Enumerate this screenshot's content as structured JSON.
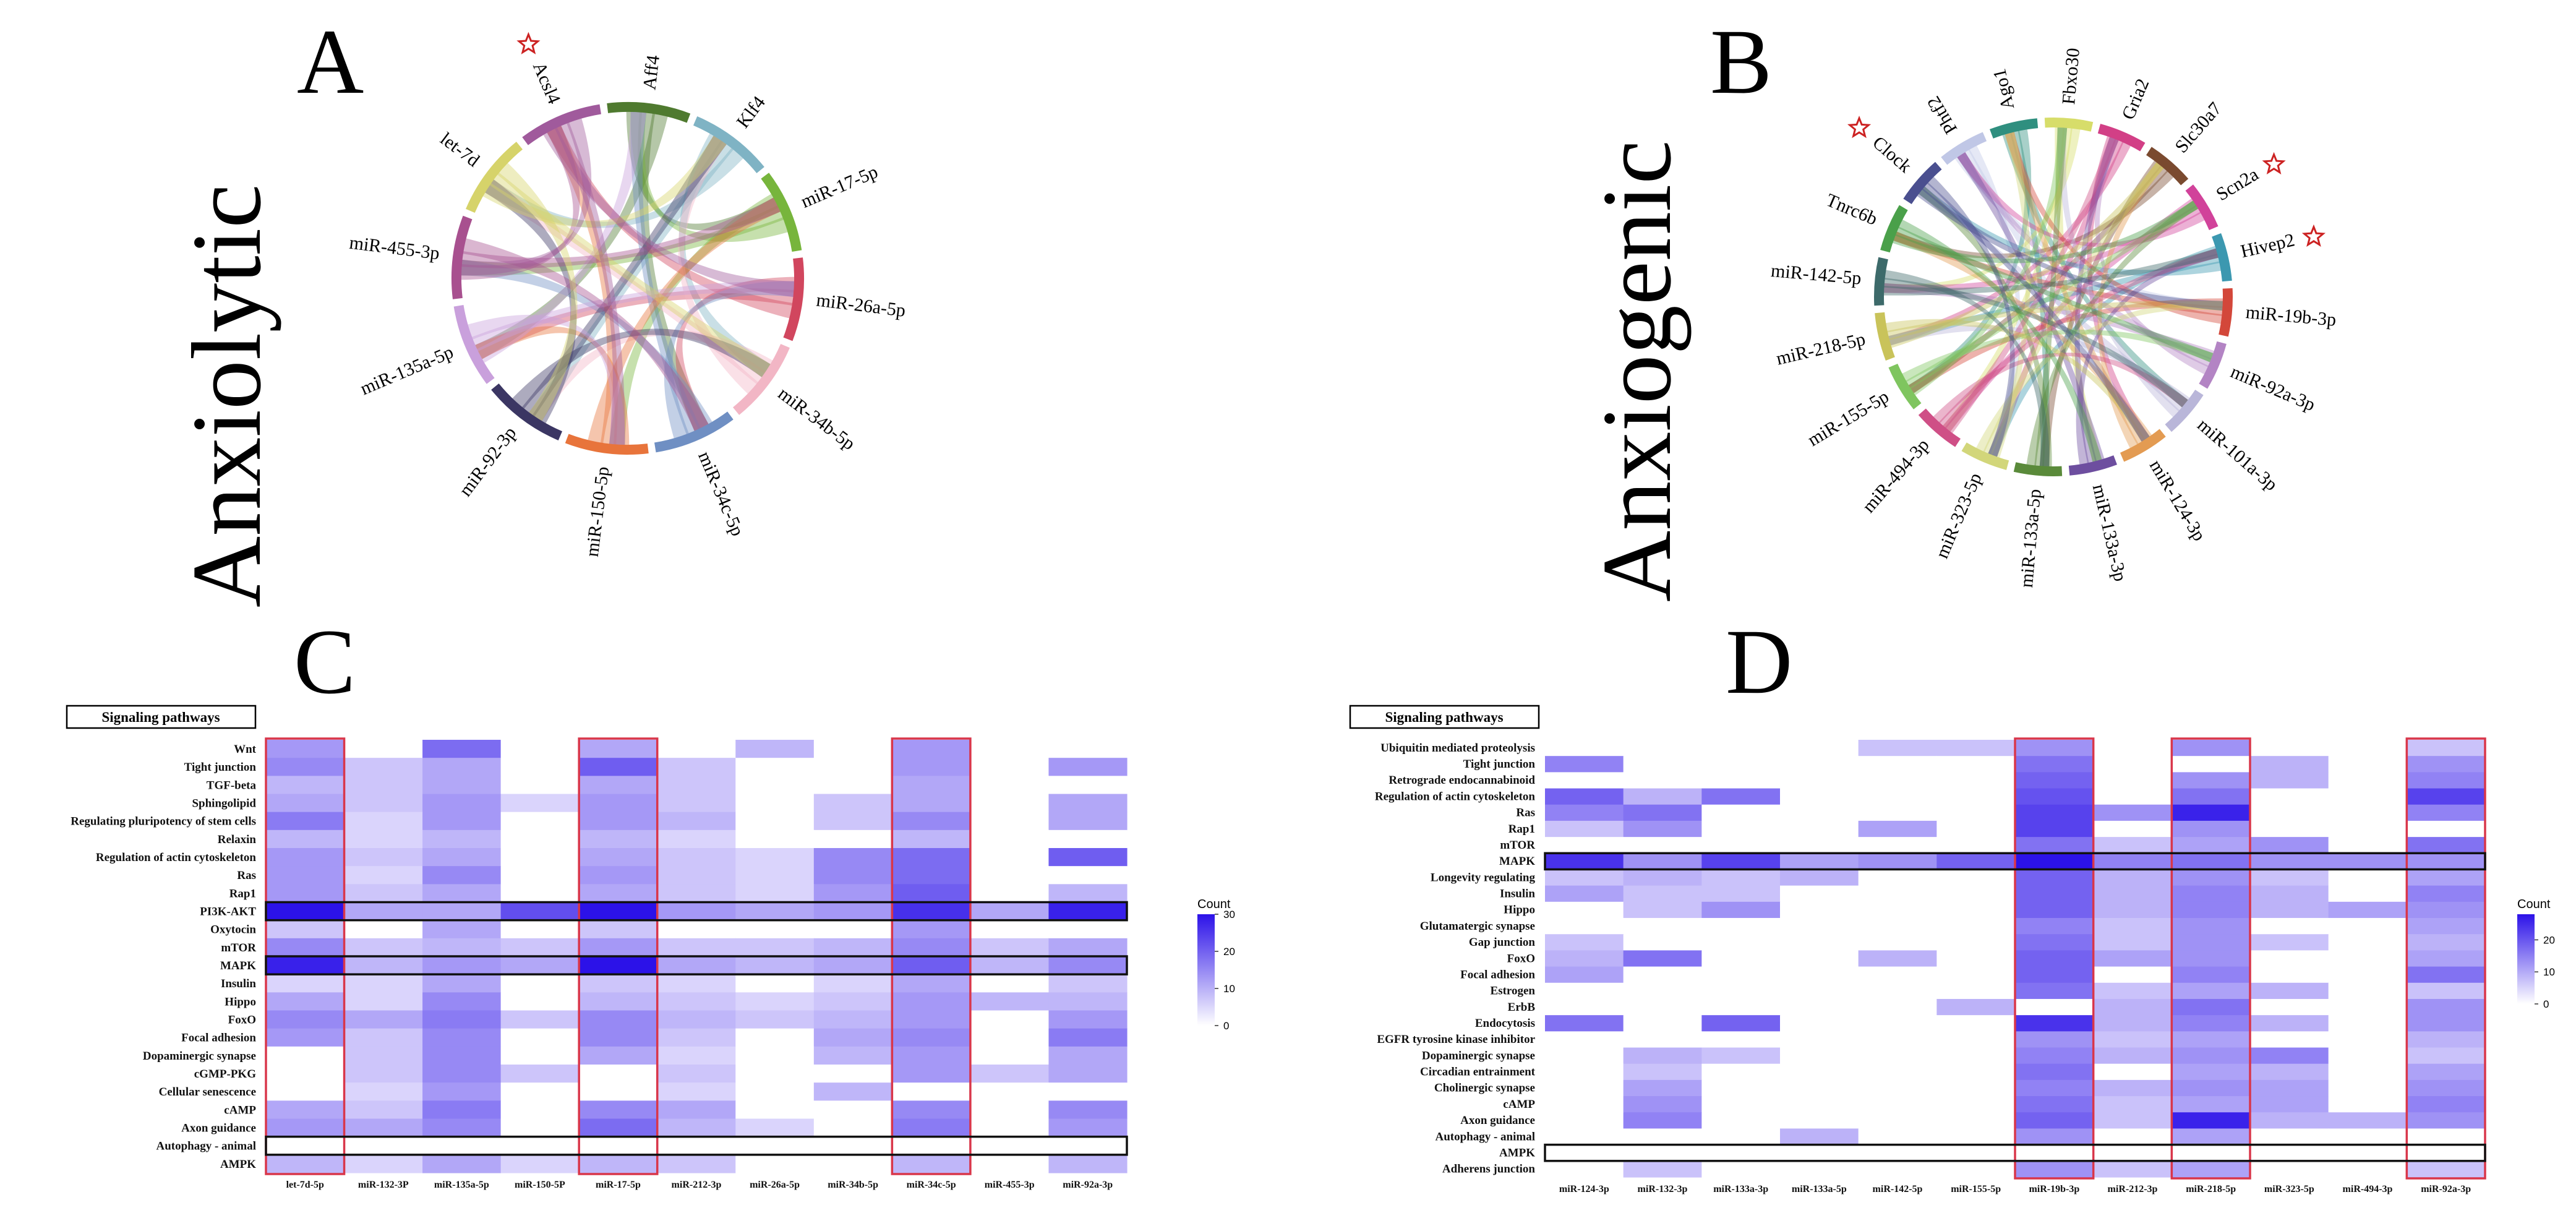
{
  "panels": {
    "A": {
      "letter": "A",
      "side_title": "Anxiolytic",
      "chord_labels": [
        "Aff4",
        "Klf4",
        "miR-17-5p",
        "miR-26a-5p",
        "miR-34b-5p",
        "miR-34c-5p",
        "miR-150-5p",
        "miR-92-3p",
        "miR-135a-5p",
        "miR-455-3p",
        "let-7d",
        "Acsl4"
      ],
      "starred": [
        "Acsl4"
      ]
    },
    "B": {
      "letter": "B",
      "side_title": "Anxiogenic",
      "chord_labels": [
        "Phtf2",
        "Ago1",
        "Fbxo30",
        "Gria2",
        "Slc30a7",
        "Scn2a",
        "Hivep2",
        "miR-19b-3p",
        "miR-92a-3p",
        "miR-101a-3p",
        "miR-124-3p",
        "miR-133a-3p",
        "miR-133a-5p",
        "miR-323-5p",
        "miR-494-3p",
        "miR-155-5p",
        "miR-218-5p",
        "miR-142-5p",
        "Tnrc6b",
        "Clock"
      ],
      "starred": [
        "Clock",
        "Scn2a",
        "Hivep2"
      ]
    },
    "C": {
      "letter": "C",
      "heading": "Signaling pathways",
      "legend_title": "Count",
      "legend_ticks": [
        "30",
        "20",
        "10",
        "0"
      ],
      "highlight_rows": [
        "PI3K-AKT",
        "MAPK",
        "Autophagy - animal"
      ],
      "highlight_cols": [
        "let-7d-5p",
        "miR-17-5p",
        "miR-34c-5p"
      ]
    },
    "D": {
      "letter": "D",
      "heading": "Signaling pathways",
      "legend_title": "Count",
      "legend_ticks": [
        "20",
        "10",
        "0"
      ],
      "highlight_rows": [
        "MAPK",
        "AMPK"
      ],
      "highlight_cols": [
        "miR-19b-3p",
        "miR-218-5p",
        "miR-92a-3p"
      ]
    }
  },
  "chart_data": [
    {
      "type": "heatmap",
      "title": "",
      "rows": [
        "Wnt",
        "Tight junction",
        "TGF-beta",
        "Sphingolipid",
        "Regulating pluripotency of stem cells",
        "Relaxin",
        "Regulation of actin cytoskeleton",
        "Ras",
        "Rap1",
        "PI3K-AKT",
        "Oxytocin",
        "mTOR",
        "MAPK",
        "Insulin",
        "Hippo",
        "FoxO",
        "Focal adhesion",
        "Dopaminergic synapse",
        "cGMP-PKG",
        "Cellular senescence",
        "cAMP",
        "Axon guidance",
        "Autophagy - animal",
        "AMPK"
      ],
      "columns": [
        "let-7d-5p",
        "miR-132-3P",
        "miR-135a-5p",
        "miR-150-5P",
        "miR-17-5p",
        "miR-212-3p",
        "miR-26a-5p",
        "miR-34b-5p",
        "miR-34c-5p",
        "miR-455-3p",
        "miR-92a-3p"
      ],
      "values": [
        [
          12,
          0,
          18,
          0,
          10,
          0,
          8,
          0,
          12,
          0,
          0
        ],
        [
          14,
          6,
          10,
          0,
          20,
          6,
          0,
          0,
          12,
          0,
          12
        ],
        [
          8,
          6,
          10,
          0,
          10,
          6,
          0,
          0,
          10,
          0,
          0
        ],
        [
          10,
          6,
          12,
          4,
          12,
          6,
          0,
          6,
          10,
          0,
          10
        ],
        [
          16,
          4,
          12,
          0,
          12,
          8,
          0,
          6,
          14,
          0,
          10
        ],
        [
          8,
          4,
          8,
          0,
          8,
          4,
          0,
          0,
          8,
          0,
          0
        ],
        [
          12,
          6,
          10,
          0,
          10,
          6,
          4,
          14,
          18,
          0,
          20
        ],
        [
          12,
          4,
          14,
          0,
          12,
          6,
          4,
          14,
          18,
          0,
          0
        ],
        [
          12,
          6,
          10,
          0,
          10,
          6,
          4,
          12,
          20,
          0,
          8
        ],
        [
          32,
          10,
          10,
          22,
          32,
          12,
          10,
          12,
          26,
          10,
          28
        ],
        [
          6,
          0,
          10,
          0,
          6,
          0,
          0,
          0,
          12,
          0,
          0
        ],
        [
          14,
          6,
          8,
          6,
          12,
          6,
          6,
          8,
          14,
          6,
          10
        ],
        [
          28,
          8,
          12,
          10,
          32,
          10,
          8,
          10,
          20,
          8,
          14
        ],
        [
          4,
          4,
          10,
          0,
          6,
          4,
          0,
          4,
          10,
          0,
          6
        ],
        [
          10,
          4,
          14,
          0,
          8,
          6,
          4,
          6,
          12,
          8,
          8
        ],
        [
          14,
          10,
          16,
          6,
          14,
          8,
          6,
          8,
          12,
          0,
          12
        ],
        [
          12,
          6,
          14,
          0,
          14,
          6,
          0,
          10,
          14,
          0,
          16
        ],
        [
          0,
          6,
          14,
          0,
          10,
          4,
          0,
          8,
          12,
          0,
          10
        ],
        [
          0,
          6,
          14,
          6,
          0,
          6,
          0,
          0,
          12,
          6,
          10
        ],
        [
          0,
          4,
          12,
          0,
          0,
          4,
          0,
          8,
          0,
          0,
          0
        ],
        [
          10,
          6,
          16,
          0,
          14,
          10,
          0,
          0,
          14,
          0,
          14
        ],
        [
          12,
          10,
          14,
          0,
          18,
          8,
          4,
          0,
          16,
          0,
          12
        ],
        [
          0,
          0,
          0,
          0,
          0,
          0,
          0,
          0,
          0,
          0,
          0
        ],
        [
          8,
          4,
          10,
          4,
          8,
          6,
          0,
          0,
          8,
          0,
          8
        ]
      ],
      "colorbar": {
        "title": "Count",
        "min": 0,
        "max": 30,
        "ticks": [
          0,
          10,
          20,
          30
        ]
      }
    },
    {
      "type": "heatmap",
      "title": "",
      "rows": [
        "Ubiquitin mediated proteolysis",
        "Tight junction",
        "Retrograde endocannabinoid",
        "Regulation of actin cytoskeleton",
        "Ras",
        "Rap1",
        "mTOR",
        "MAPK",
        "Longevity regulating",
        "Insulin",
        "Hippo",
        "Glutamatergic synapse",
        "Gap junction",
        "FoxO",
        "Focal adhesion",
        "Estrogen",
        "ErbB",
        "Endocytosis",
        "EGFR tyrosine kinase inhibitor",
        "Dopaminergic synapse",
        "Circadian entrainment",
        "Cholinergic synapse",
        "cAMP",
        "Axon guidance",
        "Autophagy - animal",
        "AMPK",
        "Adherens junction"
      ],
      "columns": [
        "miR-124-3p",
        "miR-132-3p",
        "miR-133a-3p",
        "miR-133a-5p",
        "miR-142-5p",
        "miR-155-5p",
        "miR-19b-3p",
        "miR-212-3p",
        "miR-218-5p",
        "miR-323-5p",
        "miR-494-3p",
        "miR-92a-3p"
      ],
      "values": [
        [
          0,
          0,
          0,
          0,
          6,
          6,
          12,
          0,
          12,
          0,
          0,
          6
        ],
        [
          14,
          0,
          0,
          0,
          0,
          0,
          16,
          0,
          0,
          8,
          0,
          12
        ],
        [
          0,
          0,
          0,
          0,
          0,
          0,
          18,
          0,
          12,
          8,
          0,
          14
        ],
        [
          18,
          8,
          16,
          0,
          0,
          0,
          20,
          0,
          16,
          0,
          0,
          22
        ],
        [
          14,
          16,
          0,
          0,
          0,
          0,
          22,
          12,
          26,
          0,
          0,
          14
        ],
        [
          6,
          12,
          0,
          0,
          10,
          0,
          22,
          0,
          12,
          0,
          0,
          0
        ],
        [
          0,
          0,
          0,
          0,
          0,
          0,
          16,
          6,
          10,
          12,
          0,
          16
        ],
        [
          24,
          12,
          22,
          10,
          12,
          18,
          28,
          14,
          16,
          12,
          12,
          12
        ],
        [
          6,
          8,
          6,
          8,
          0,
          0,
          18,
          8,
          12,
          6,
          0,
          10
        ],
        [
          10,
          6,
          6,
          0,
          0,
          0,
          18,
          8,
          14,
          8,
          0,
          14
        ],
        [
          0,
          6,
          12,
          0,
          0,
          0,
          18,
          8,
          14,
          8,
          10,
          12
        ],
        [
          0,
          0,
          0,
          0,
          0,
          0,
          14,
          6,
          12,
          0,
          0,
          10
        ],
        [
          6,
          0,
          0,
          0,
          0,
          0,
          16,
          6,
          12,
          6,
          0,
          8
        ],
        [
          8,
          16,
          0,
          0,
          8,
          0,
          18,
          10,
          12,
          0,
          0,
          10
        ],
        [
          10,
          0,
          0,
          0,
          0,
          0,
          18,
          0,
          14,
          0,
          0,
          16
        ],
        [
          0,
          0,
          0,
          0,
          0,
          0,
          16,
          6,
          10,
          8,
          0,
          6
        ],
        [
          0,
          0,
          0,
          0,
          0,
          8,
          0,
          8,
          16,
          0,
          0,
          12
        ],
        [
          16,
          0,
          18,
          0,
          0,
          0,
          24,
          8,
          14,
          8,
          0,
          12
        ],
        [
          0,
          0,
          0,
          0,
          0,
          0,
          12,
          6,
          10,
          0,
          0,
          8
        ],
        [
          0,
          8,
          6,
          0,
          0,
          0,
          14,
          8,
          12,
          14,
          0,
          6
        ],
        [
          0,
          6,
          0,
          0,
          0,
          0,
          16,
          0,
          10,
          8,
          0,
          10
        ],
        [
          0,
          10,
          0,
          0,
          0,
          0,
          14,
          8,
          12,
          10,
          0,
          12
        ],
        [
          0,
          12,
          0,
          0,
          0,
          0,
          16,
          6,
          10,
          10,
          0,
          14
        ],
        [
          0,
          14,
          0,
          0,
          0,
          0,
          18,
          6,
          26,
          8,
          8,
          12
        ],
        [
          0,
          0,
          0,
          8,
          0,
          0,
          12,
          0,
          10,
          0,
          0,
          0
        ],
        [
          0,
          0,
          0,
          0,
          0,
          0,
          0,
          0,
          0,
          0,
          0,
          0
        ],
        [
          0,
          6,
          0,
          0,
          0,
          0,
          12,
          6,
          10,
          0,
          0,
          6
        ]
      ],
      "colorbar": {
        "title": "Count",
        "min": 0,
        "max": 28,
        "ticks": [
          0,
          10,
          20
        ]
      }
    }
  ]
}
